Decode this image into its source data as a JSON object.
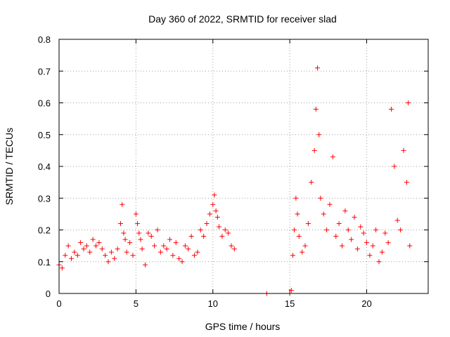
{
  "chart_data": {
    "type": "scatter",
    "title": "Day 360 of 2022, SRMTID for receiver slad",
    "xlabel": "GPS time / hours",
    "ylabel": "SRMTID / TECUs",
    "xlim": [
      0,
      24
    ],
    "ylim": [
      0,
      0.8
    ],
    "xticks": [
      0,
      5,
      10,
      15,
      20
    ],
    "xtick_labels": [
      "0",
      "5",
      "10",
      "15",
      "20"
    ],
    "yticks": [
      0,
      0.1,
      0.2,
      0.3,
      0.4,
      0.5,
      0.6,
      0.7,
      0.8
    ],
    "ytick_labels": [
      "0",
      "0.1",
      "0.2",
      "0.3",
      "0.4",
      "0.5",
      "0.6",
      "0.7",
      "0.8"
    ],
    "grid": true,
    "marker": "+",
    "color": "#ff0000",
    "series": [
      {
        "name": "SRMTID",
        "x": [
          0.0,
          0.2,
          0.4,
          0.6,
          0.8,
          1.0,
          1.2,
          1.4,
          1.6,
          1.8,
          2.0,
          2.2,
          2.4,
          2.6,
          2.8,
          3.0,
          3.2,
          3.4,
          3.6,
          3.8,
          4.0,
          4.1,
          4.2,
          4.3,
          4.4,
          4.6,
          4.8,
          5.0,
          5.1,
          5.2,
          5.3,
          5.4,
          5.6,
          5.8,
          6.0,
          6.2,
          6.4,
          6.6,
          6.8,
          7.0,
          7.2,
          7.4,
          7.6,
          7.8,
          8.0,
          8.2,
          8.4,
          8.6,
          8.8,
          9.0,
          9.2,
          9.4,
          9.6,
          9.8,
          10.0,
          10.1,
          10.2,
          10.3,
          10.4,
          10.6,
          10.8,
          11.0,
          11.2,
          11.4,
          13.5,
          15.0,
          15.1,
          15.2,
          15.3,
          15.4,
          15.5,
          15.6,
          15.8,
          16.0,
          16.2,
          16.4,
          16.6,
          16.7,
          16.8,
          16.9,
          17.0,
          17.2,
          17.4,
          17.6,
          17.8,
          18.0,
          18.2,
          18.4,
          18.6,
          18.8,
          19.0,
          19.2,
          19.4,
          19.6,
          19.8,
          20.0,
          20.2,
          20.4,
          20.6,
          20.8,
          21.0,
          21.2,
          21.4,
          21.6,
          21.8,
          22.0,
          22.2,
          22.4,
          22.6,
          22.7,
          22.8
        ],
        "y": [
          0.09,
          0.08,
          0.12,
          0.15,
          0.11,
          0.13,
          0.12,
          0.16,
          0.14,
          0.15,
          0.13,
          0.17,
          0.15,
          0.16,
          0.14,
          0.12,
          0.1,
          0.13,
          0.11,
          0.14,
          0.22,
          0.28,
          0.19,
          0.17,
          0.13,
          0.16,
          0.12,
          0.25,
          0.22,
          0.19,
          0.17,
          0.14,
          0.09,
          0.19,
          0.18,
          0.15,
          0.2,
          0.13,
          0.15,
          0.14,
          0.17,
          0.12,
          0.16,
          0.11,
          0.1,
          0.15,
          0.14,
          0.18,
          0.12,
          0.13,
          0.2,
          0.18,
          0.22,
          0.25,
          0.28,
          0.31,
          0.26,
          0.24,
          0.21,
          0.18,
          0.2,
          0.19,
          0.15,
          0.14,
          0.0,
          0.0,
          0.01,
          0.12,
          0.2,
          0.3,
          0.25,
          0.18,
          0.13,
          0.15,
          0.22,
          0.35,
          0.45,
          0.58,
          0.71,
          0.5,
          0.3,
          0.25,
          0.2,
          0.28,
          0.43,
          0.18,
          0.22,
          0.15,
          0.26,
          0.2,
          0.17,
          0.24,
          0.14,
          0.21,
          0.19,
          0.16,
          0.12,
          0.15,
          0.2,
          0.1,
          0.13,
          0.19,
          0.16,
          0.58,
          0.4,
          0.23,
          0.2,
          0.45,
          0.35,
          0.6,
          0.15
        ]
      }
    ]
  }
}
